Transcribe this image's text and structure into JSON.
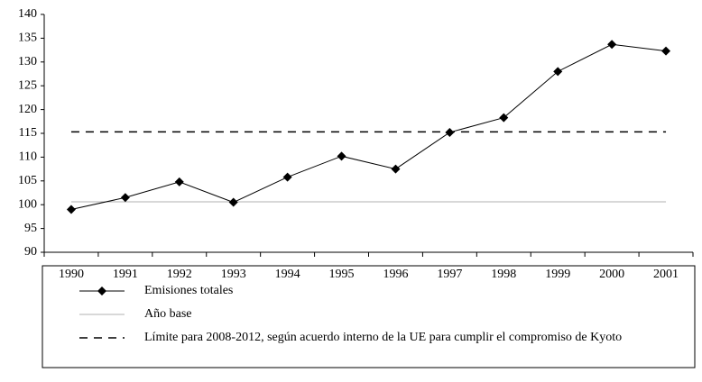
{
  "chart_data": {
    "type": "line",
    "categories": [
      "1990",
      "1991",
      "1992",
      "1993",
      "1994",
      "1995",
      "1996",
      "1997",
      "1998",
      "1999",
      "2000",
      "2001"
    ],
    "series": [
      {
        "name": "Emisiones totales",
        "color": "#000000",
        "marker": "diamond",
        "dash": false,
        "values": [
          99,
          101.5,
          104.8,
          100.5,
          105.8,
          110.2,
          107.5,
          115.2,
          118.3,
          128,
          133.7,
          132.3
        ]
      },
      {
        "name": "Año base",
        "color": "#b0b0b0",
        "marker": "none",
        "dash": false,
        "values": [
          100.6,
          100.6,
          100.6,
          100.6,
          100.6,
          100.6,
          100.6,
          100.6,
          100.6,
          100.6,
          100.6,
          100.6
        ]
      },
      {
        "name": "Límite para 2008-2012, según acuerdo interno de la UE para cumplir el compromiso de Kyoto",
        "color": "#000000",
        "marker": "none",
        "dash": true,
        "values": [
          115.3,
          115.3,
          115.3,
          115.3,
          115.3,
          115.3,
          115.3,
          115.3,
          115.3,
          115.3,
          115.3,
          115.3
        ]
      }
    ],
    "ylim": [
      90,
      140
    ],
    "yticks": [
      90,
      95,
      100,
      105,
      110,
      115,
      120,
      125,
      130,
      135,
      140
    ],
    "grid": false
  }
}
